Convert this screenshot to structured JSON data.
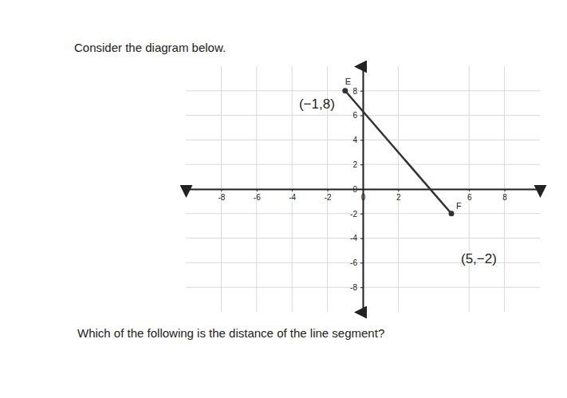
{
  "header": {
    "intro": "Consider the diagram below.",
    "question": "Which of the following is the distance of the line segment?"
  },
  "chart_data": {
    "type": "line",
    "x": [
      -1,
      5
    ],
    "values": [
      8,
      -2
    ],
    "point_labels": [
      "E",
      "F"
    ],
    "annotations": [
      "(−1,8)",
      "(5,−2)"
    ],
    "color": "#333333",
    "marker": "circle",
    "xlim": [
      -10,
      10
    ],
    "ylim": [
      -10,
      10
    ],
    "xticks": [
      -8,
      -6,
      -4,
      -2,
      0,
      2,
      6,
      8
    ],
    "yticks": [
      -8,
      -6,
      -4,
      -2,
      0,
      2,
      4,
      6,
      8
    ],
    "grid": true
  }
}
